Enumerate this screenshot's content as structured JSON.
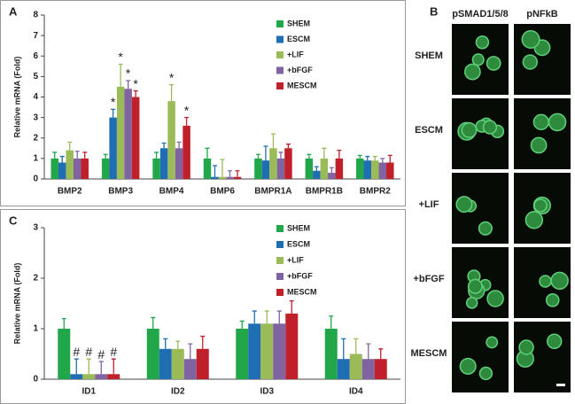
{
  "chart_data": [
    {
      "type": "bar",
      "panel": "A",
      "y_label": "Relative mRNA (Fold)",
      "categories": [
        "BMP2",
        "BMP3",
        "BMP4",
        "BMP6",
        "BMPR1A",
        "BMPR1B",
        "BMPR2"
      ],
      "ylim": [
        0,
        8
      ],
      "yticks": [
        0,
        1,
        2,
        3,
        4,
        5,
        6,
        7,
        8
      ],
      "legend": "upper right",
      "series": [
        {
          "name": "SHEM",
          "color": "#21a64a",
          "values": [
            1.0,
            1.0,
            1.0,
            1.0,
            1.0,
            1.0,
            1.0
          ],
          "errors": [
            0.3,
            0.2,
            0.3,
            0.5,
            0.2,
            0.2,
            0.15
          ],
          "sig": [
            null,
            null,
            null,
            null,
            null,
            null,
            null
          ]
        },
        {
          "name": "ESCM",
          "color": "#1f6db3",
          "values": [
            0.8,
            3.0,
            1.5,
            0.1,
            0.9,
            0.4,
            0.9
          ],
          "errors": [
            0.3,
            0.4,
            0.25,
            0.55,
            0.7,
            0.2,
            0.2
          ],
          "sig": [
            null,
            "*",
            null,
            null,
            null,
            null,
            null
          ]
        },
        {
          "name": "+LIF",
          "color": "#9bbb59",
          "values": [
            1.4,
            4.5,
            3.8,
            0.1,
            1.5,
            1.0,
            0.9
          ],
          "errors": [
            0.4,
            1.1,
            0.8,
            0.85,
            0.7,
            0.5,
            0.2
          ],
          "sig": [
            null,
            "*",
            "*",
            null,
            null,
            null,
            null
          ]
        },
        {
          "name": "+bFGF",
          "color": "#8064a2",
          "values": [
            1.0,
            4.4,
            1.5,
            0.1,
            1.0,
            0.3,
            0.8
          ],
          "errors": [
            0.35,
            0.4,
            0.3,
            0.3,
            0.3,
            0.25,
            0.2
          ],
          "sig": [
            null,
            "*",
            null,
            null,
            null,
            null,
            null
          ]
        },
        {
          "name": "MESCM",
          "color": "#c0202a",
          "values": [
            1.0,
            4.0,
            2.6,
            0.1,
            1.5,
            1.0,
            0.8
          ],
          "errors": [
            0.3,
            0.3,
            0.4,
            0.3,
            0.2,
            0.4,
            0.35
          ],
          "sig": [
            null,
            "*",
            "*",
            null,
            null,
            null,
            null
          ]
        }
      ]
    },
    {
      "type": "bar",
      "panel": "C",
      "y_label": "Relative mRNA (Fold)",
      "categories": [
        "ID1",
        "ID2",
        "ID3",
        "ID4"
      ],
      "ylim": [
        0,
        3
      ],
      "yticks": [
        0,
        1,
        2,
        3
      ],
      "legend": "upper right",
      "series": [
        {
          "name": "SHEM",
          "color": "#21a64a",
          "values": [
            1.0,
            1.0,
            1.0,
            1.0
          ],
          "errors": [
            0.2,
            0.22,
            0.15,
            0.25
          ],
          "sig": [
            null,
            null,
            null,
            null
          ]
        },
        {
          "name": "ESCM",
          "color": "#1f6db3",
          "values": [
            0.1,
            0.6,
            1.1,
            0.4
          ],
          "errors": [
            0.3,
            0.2,
            0.25,
            0.4
          ],
          "sig": [
            "#",
            null,
            null,
            null
          ]
        },
        {
          "name": "+LIF",
          "color": "#9bbb59",
          "values": [
            0.1,
            0.6,
            1.1,
            0.5
          ],
          "errors": [
            0.3,
            0.15,
            0.25,
            0.3
          ],
          "sig": [
            "#",
            null,
            null,
            null
          ]
        },
        {
          "name": "+bFGF",
          "color": "#8064a2",
          "values": [
            0.1,
            0.4,
            1.1,
            0.4
          ],
          "errors": [
            0.25,
            0.3,
            0.25,
            0.3
          ],
          "sig": [
            "#",
            null,
            null,
            null
          ]
        },
        {
          "name": "MESCM",
          "color": "#c0202a",
          "values": [
            0.1,
            0.6,
            1.3,
            0.4
          ],
          "errors": [
            0.3,
            0.25,
            0.25,
            0.2
          ],
          "sig": [
            "#",
            null,
            null,
            null
          ]
        }
      ]
    }
  ],
  "panel_b": {
    "panel": "B",
    "columns": [
      "pSMAD1/5/8",
      "pNFkB"
    ],
    "rows": [
      "SHEM",
      "ESCM",
      "+LIF",
      "+bFGF",
      "MESCM"
    ]
  }
}
